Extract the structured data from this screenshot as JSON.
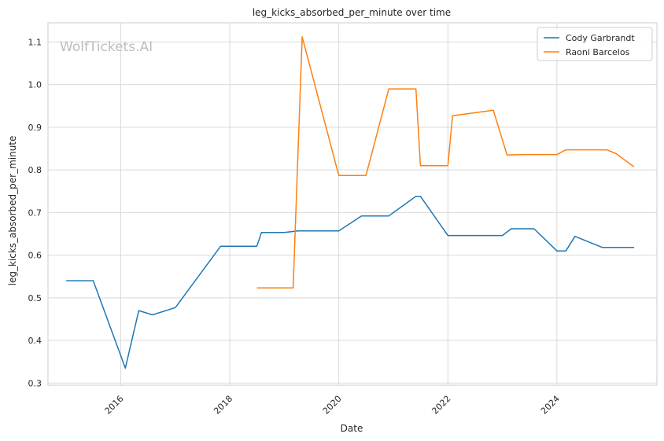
{
  "watermark": "WolfTickets.AI",
  "chart_data": {
    "type": "line",
    "title": "leg_kicks_absorbed_per_minute over time",
    "xlabel": "Date",
    "ylabel": "leg_kicks_absorbed_per_minute",
    "xlim": [
      "2014-09-01",
      "2025-11-01"
    ],
    "ylim": [
      0.295,
      1.145
    ],
    "x_ticks": [
      "2016",
      "2018",
      "2020",
      "2022",
      "2024"
    ],
    "y_ticks": [
      "0.3",
      "0.4",
      "0.5",
      "0.6",
      "0.7",
      "0.8",
      "0.9",
      "1.0",
      "1.1"
    ],
    "grid": true,
    "legend_position": "top-right",
    "series": [
      {
        "name": "Cody Garbrandt",
        "color": "#1f77b4",
        "points": [
          [
            "2015-01-01",
            0.54
          ],
          [
            "2015-07-01",
            0.54
          ],
          [
            "2016-02-01",
            0.335
          ],
          [
            "2016-05-01",
            0.47
          ],
          [
            "2016-08-01",
            0.46
          ],
          [
            "2017-01-01",
            0.477
          ],
          [
            "2017-11-01",
            0.621
          ],
          [
            "2018-07-01",
            0.621
          ],
          [
            "2018-08-01",
            0.653
          ],
          [
            "2019-01-01",
            0.653
          ],
          [
            "2019-04-01",
            0.657
          ],
          [
            "2020-01-01",
            0.657
          ],
          [
            "2020-06-01",
            0.692
          ],
          [
            "2020-12-01",
            0.692
          ],
          [
            "2021-06-01",
            0.738
          ],
          [
            "2021-07-01",
            0.738
          ],
          [
            "2022-01-01",
            0.646
          ],
          [
            "2023-01-01",
            0.646
          ],
          [
            "2023-03-01",
            0.662
          ],
          [
            "2023-08-01",
            0.662
          ],
          [
            "2024-01-01",
            0.61
          ],
          [
            "2024-03-01",
            0.61
          ],
          [
            "2024-05-01",
            0.644
          ],
          [
            "2024-11-01",
            0.618
          ],
          [
            "2025-06-01",
            0.618
          ]
        ]
      },
      {
        "name": "Raoni Barcelos",
        "color": "#ff7f0e",
        "points": [
          [
            "2018-07-01",
            0.523
          ],
          [
            "2019-03-01",
            0.523
          ],
          [
            "2019-05-01",
            1.112
          ],
          [
            "2020-01-01",
            0.787
          ],
          [
            "2020-07-01",
            0.787
          ],
          [
            "2020-12-01",
            0.99
          ],
          [
            "2021-06-01",
            0.99
          ],
          [
            "2021-07-01",
            0.81
          ],
          [
            "2022-01-01",
            0.81
          ],
          [
            "2022-02-01",
            0.927
          ],
          [
            "2022-11-01",
            0.94
          ],
          [
            "2023-02-01",
            0.835
          ],
          [
            "2023-06-01",
            0.836
          ],
          [
            "2024-01-01",
            0.836
          ],
          [
            "2024-03-01",
            0.847
          ],
          [
            "2024-12-01",
            0.847
          ],
          [
            "2025-02-01",
            0.838
          ],
          [
            "2025-06-01",
            0.807
          ]
        ]
      }
    ]
  }
}
